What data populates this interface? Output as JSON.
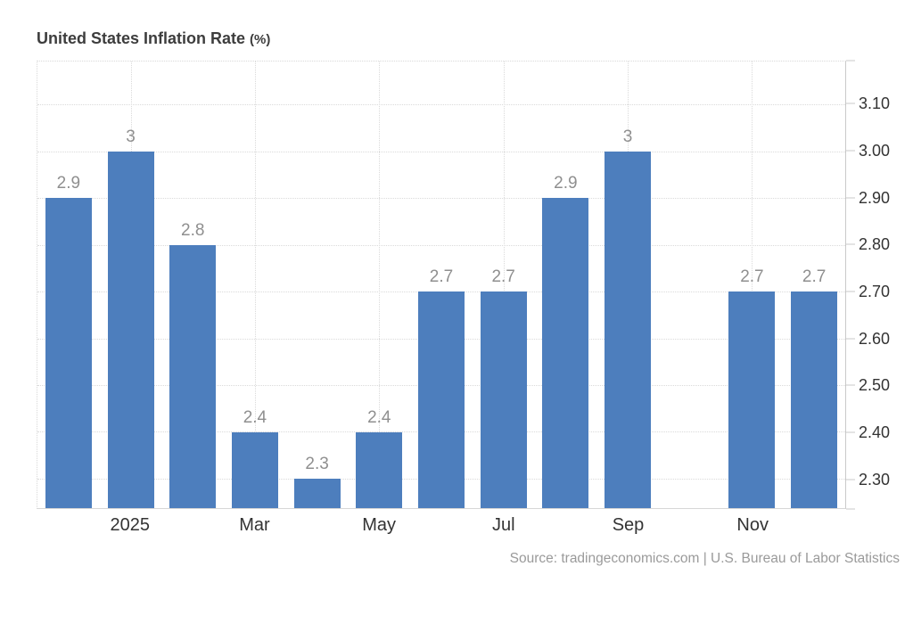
{
  "header": {
    "title": "United States Inflation Rate",
    "unit": "(%)"
  },
  "footer": {
    "source": "Source: tradingeconomics.com | U.S. Bureau of Labor Statistics"
  },
  "chart_data": {
    "type": "bar",
    "title": "United States Inflation Rate (%)",
    "xlabel": "",
    "ylabel": "",
    "categories": [
      "",
      "2025",
      "",
      "Mar",
      "",
      "May",
      "",
      "Jul",
      "",
      "Sep",
      "",
      "Nov",
      ""
    ],
    "values": [
      2.9,
      3,
      2.8,
      2.4,
      2.3,
      2.4,
      2.7,
      2.7,
      2.9,
      3,
      null,
      2.7,
      2.7
    ],
    "value_labels": [
      "2.9",
      "3",
      "2.8",
      "2.4",
      "2.3",
      "2.4",
      "2.7",
      "2.7",
      "2.9",
      "3",
      "",
      "2.7",
      "2.7"
    ],
    "missing_category_note": "one empty column between Sep bar and the two Nov/Dec bars (no data)",
    "yticks": [
      2.3,
      2.4,
      2.5,
      2.6,
      2.7,
      2.8,
      2.9,
      3.0,
      3.1
    ],
    "ytick_labels": [
      "2.30",
      "2.40",
      "2.50",
      "2.60",
      "2.70",
      "2.80",
      "2.90",
      "3.00",
      "3.10"
    ],
    "ylim": [
      2.237,
      3.192
    ],
    "y_axis_side": "right",
    "grid": "dotted",
    "legend": "none",
    "source": "Source: tradingeconomics.com | U.S. Bureau of Labor Statistics",
    "colors": {
      "bar": "#4d7ebd",
      "value_label": "#8f8f8f",
      "axis_label": "#333333",
      "title": "#3d3d3d",
      "grid": "#dadada",
      "axis_line": "#c9c9c9",
      "source": "#9a9a9a",
      "background": "#ffffff"
    }
  }
}
